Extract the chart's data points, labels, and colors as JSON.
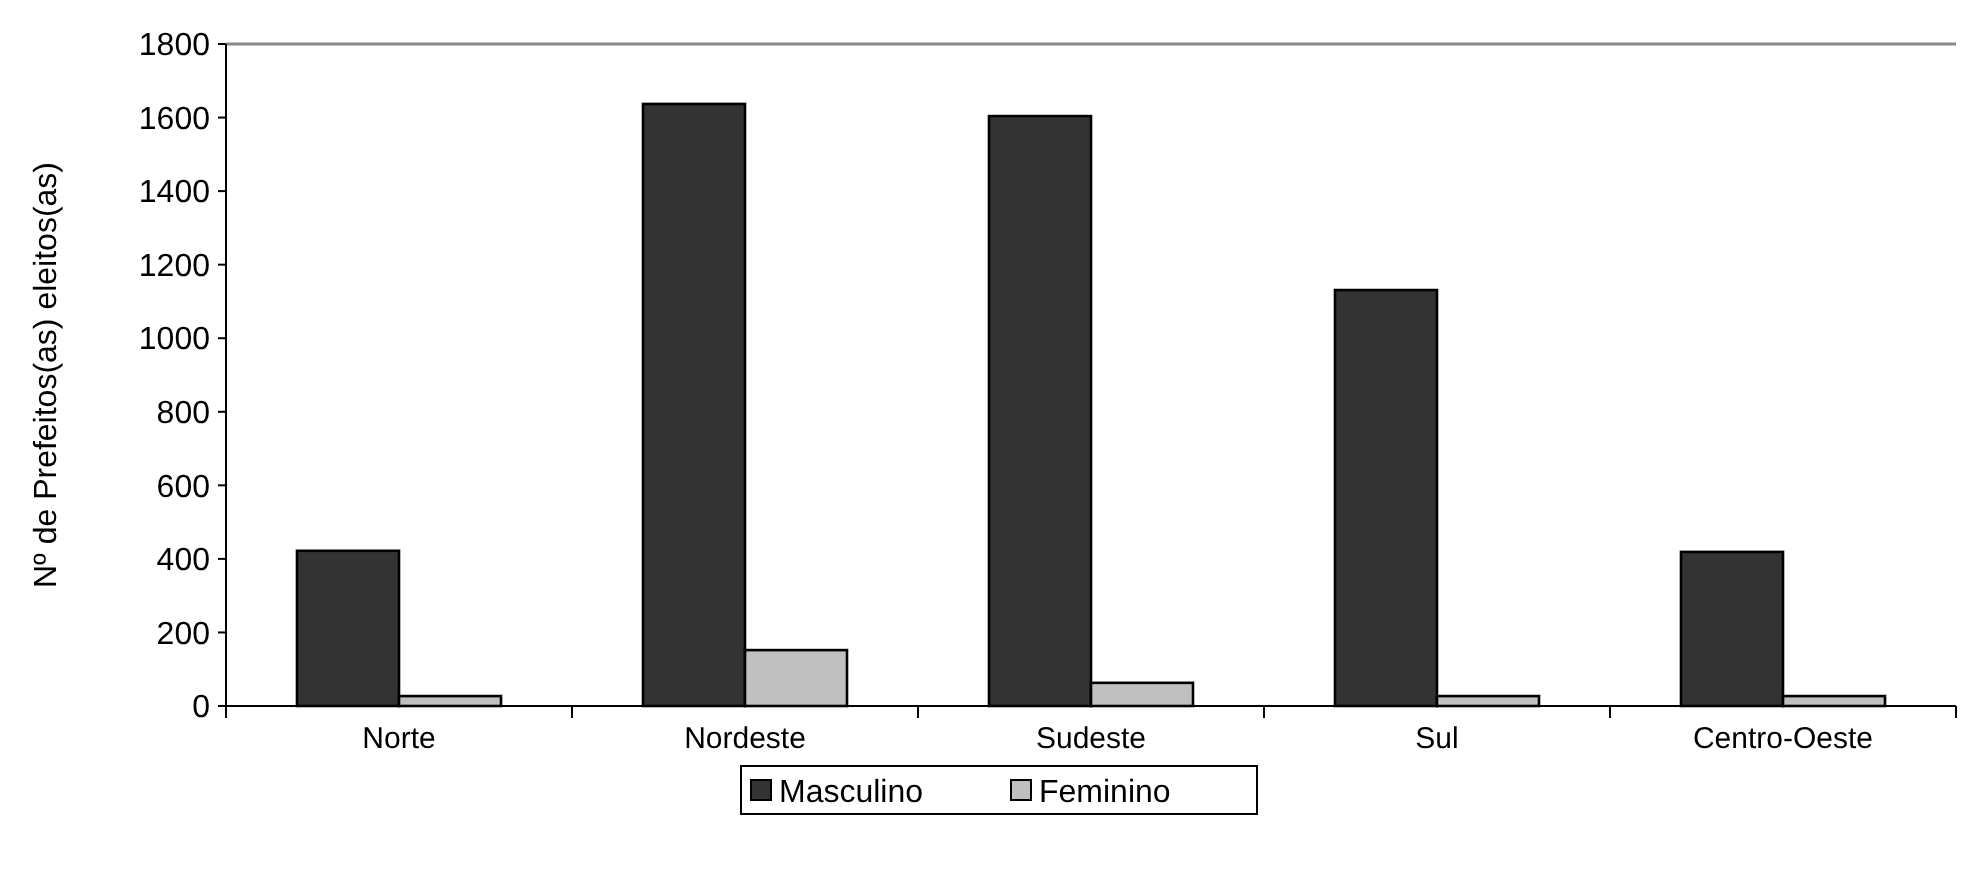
{
  "chart_data": {
    "type": "bar",
    "ylabel": "Nº de Prefeitos(as) eleitos(as)",
    "categories": [
      "Norte",
      "Nordeste",
      "Sudeste",
      "Sul",
      "Centro-Oeste"
    ],
    "series": [
      {
        "name": "Masculino",
        "color": "#333333",
        "values": [
          422,
          1637,
          1604,
          1131,
          419
        ]
      },
      {
        "name": "Feminino",
        "color": "#c0c0c0",
        "values": [
          27,
          152,
          63,
          27,
          27
        ]
      }
    ],
    "ylim": [
      0,
      1800
    ],
    "yticks": [
      0,
      200,
      400,
      600,
      800,
      1000,
      1200,
      1400,
      1600,
      1800
    ],
    "grid": false,
    "legend": "bottom"
  }
}
